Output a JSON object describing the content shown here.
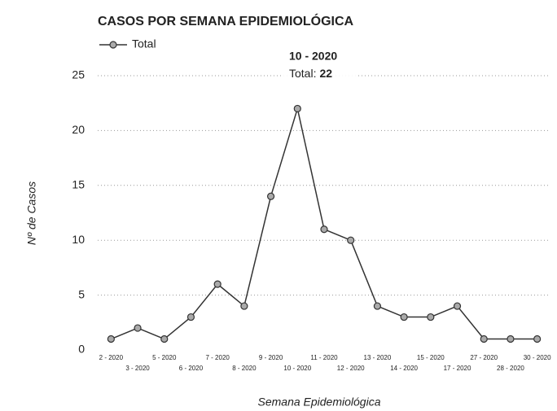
{
  "chart_data": {
    "type": "line",
    "title": "CASOS POR SEMANA EPIDEMIOLÓGICA",
    "x_label": "Semana Epidemiológica",
    "y_label": "Nº de Casos",
    "categories": [
      "2 - 2020",
      "3 - 2020",
      "5 - 2020",
      "6 - 2020",
      "7 - 2020",
      "8 - 2020",
      "9 - 2020",
      "10 - 2020",
      "11 - 2020",
      "12 - 2020",
      "13 - 2020",
      "14 - 2020",
      "15 - 2020",
      "17 - 2020",
      "27 - 2020",
      "28 - 2020",
      "30 - 2020"
    ],
    "series": [
      {
        "name": "Total",
        "color": "#333333",
        "values": [
          1,
          2,
          1,
          3,
          6,
          4,
          14,
          22,
          11,
          10,
          4,
          3,
          3,
          4,
          1,
          1,
          1
        ]
      }
    ],
    "ylim": [
      0,
      25
    ],
    "yticks": [
      0,
      5,
      10,
      15,
      20,
      25
    ],
    "grid": true,
    "legend": "top-left",
    "tooltip": {
      "title": "10 - 2020",
      "label": "Total:",
      "value": 22
    }
  }
}
